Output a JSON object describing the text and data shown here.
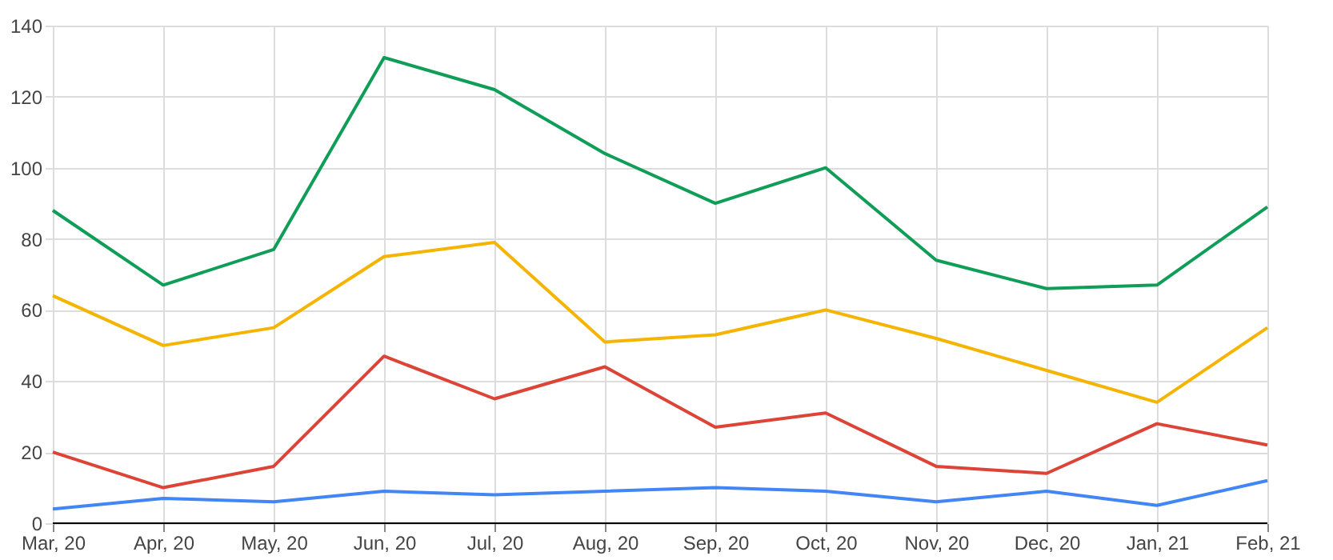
{
  "chart_data": {
    "type": "line",
    "categories": [
      "Mar, 20",
      "Apr, 20",
      "May, 20",
      "Jun, 20",
      "Jul, 20",
      "Aug, 20",
      "Sep, 20",
      "Oct, 20",
      "Nov, 20",
      "Dec, 20",
      "Jan, 21",
      "Feb, 21"
    ],
    "series": [
      {
        "color": "#0f9d58",
        "values": [
          88,
          67,
          77,
          131,
          122,
          104,
          90,
          100,
          74,
          66,
          67,
          89
        ]
      },
      {
        "color": "#f4b400",
        "values": [
          64,
          50,
          55,
          75,
          79,
          51,
          53,
          60,
          52,
          43,
          34,
          55
        ]
      },
      {
        "color": "#db4437",
        "values": [
          20,
          10,
          16,
          47,
          35,
          44,
          27,
          31,
          16,
          14,
          28,
          22
        ]
      },
      {
        "color": "#4285f4",
        "values": [
          4,
          7,
          6,
          9,
          8,
          9,
          10,
          9,
          6,
          9,
          5,
          12
        ]
      }
    ],
    "ylim": [
      0,
      140
    ],
    "yticks": [
      0,
      20,
      40,
      60,
      80,
      100,
      120,
      140
    ],
    "grid": true,
    "legend": false,
    "marker": "none",
    "line_style": "solid"
  }
}
